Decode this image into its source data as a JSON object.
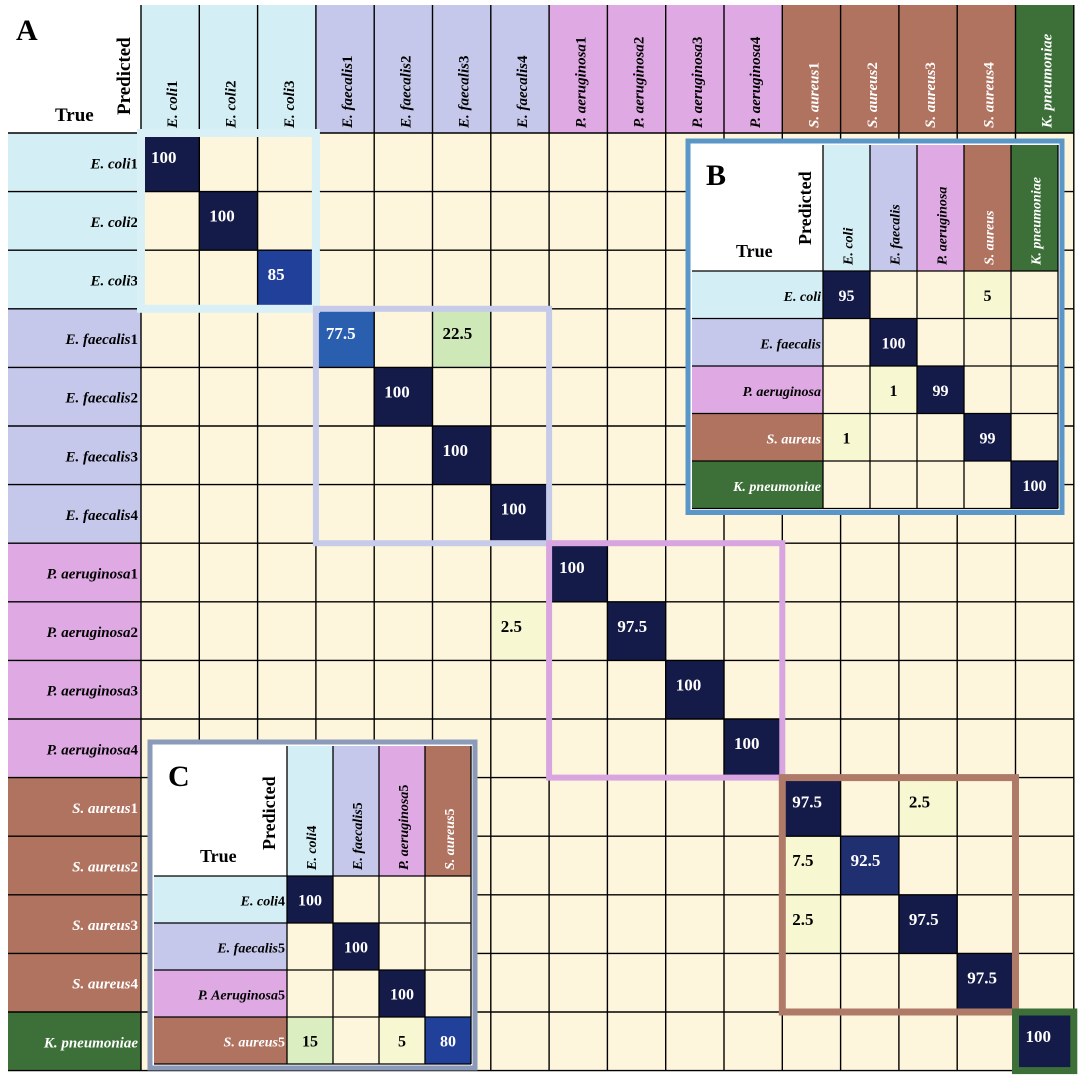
{
  "colors": {
    "cell_bg": "#fdf5dc",
    "ecoli": "#d3eef4",
    "efaecalis": "#c5c8ea",
    "paeruginosa": "#dfa9e3",
    "saureus": "#b07360",
    "kpneumoniae": "#3c7038",
    "grid": "#000000",
    "ecoli_frame": "#d8f0f6",
    "efaecalis_frame": "#c6cbea",
    "paeruginosa_frame": "#d8a5e0",
    "saureus_frame": "#b07a68",
    "kpneumoniae_frame": "#3c7038",
    "inset_b_frame": "#5a96c8",
    "inset_c_frame": "#8a9ab8"
  },
  "chart_data": [
    {
      "panel": "A",
      "type": "heatmap",
      "true_label": "True",
      "predicted_label": "Predicted",
      "rows": [
        "E. coli1",
        "E. coli2",
        "E. coli3",
        "E. faecalis1",
        "E. faecalis2",
        "E. faecalis3",
        "E. faecalis4",
        "P. aeruginosa1",
        "P. aeruginosa2",
        "P. aeruginosa3",
        "P. aeruginosa4",
        "S. aureus1",
        "S. aureus2",
        "S. aureus3",
        "S. aureus4",
        "K. pneumoniae"
      ],
      "columns": [
        "E. coli1",
        "E. coli2",
        "E. coli3",
        "E. faecalis1",
        "E. faecalis2",
        "E. faecalis3",
        "E. faecalis4",
        "P. aeruginosa1",
        "P. aeruginosa2",
        "P. aeruginosa3",
        "P. aeruginosa4",
        "S. aureus1",
        "S. aureus2",
        "S. aureus3",
        "S. aureus4",
        "K. pneumoniae"
      ],
      "values": [
        [
          100,
          null,
          null,
          null,
          null,
          null,
          null,
          null,
          null,
          null,
          null,
          null,
          null,
          null,
          null,
          null
        ],
        [
          null,
          100,
          null,
          null,
          null,
          null,
          null,
          null,
          null,
          null,
          null,
          null,
          null,
          null,
          null,
          null
        ],
        [
          null,
          null,
          85,
          null,
          null,
          null,
          null,
          null,
          null,
          null,
          null,
          null,
          null,
          null,
          null,
          null
        ],
        [
          null,
          null,
          null,
          77.5,
          null,
          22.5,
          null,
          null,
          null,
          null,
          null,
          null,
          null,
          null,
          null,
          null
        ],
        [
          null,
          null,
          null,
          null,
          100,
          null,
          null,
          null,
          null,
          null,
          null,
          null,
          null,
          null,
          null,
          null
        ],
        [
          null,
          null,
          null,
          null,
          null,
          100,
          null,
          null,
          null,
          null,
          null,
          null,
          null,
          null,
          null,
          null
        ],
        [
          null,
          null,
          null,
          null,
          null,
          null,
          100,
          null,
          null,
          null,
          null,
          null,
          null,
          null,
          null,
          null
        ],
        [
          null,
          null,
          null,
          null,
          null,
          null,
          null,
          100,
          null,
          null,
          null,
          null,
          null,
          null,
          null,
          null
        ],
        [
          null,
          null,
          null,
          null,
          null,
          null,
          2.5,
          null,
          97.5,
          null,
          null,
          null,
          null,
          null,
          null,
          null
        ],
        [
          null,
          null,
          null,
          null,
          null,
          null,
          null,
          null,
          null,
          100,
          null,
          null,
          null,
          null,
          null,
          null
        ],
        [
          null,
          null,
          null,
          null,
          null,
          null,
          null,
          null,
          null,
          null,
          100,
          null,
          null,
          null,
          null,
          null
        ],
        [
          null,
          null,
          null,
          null,
          null,
          null,
          null,
          null,
          null,
          null,
          null,
          97.5,
          null,
          2.5,
          null,
          null
        ],
        [
          null,
          null,
          null,
          null,
          null,
          null,
          null,
          null,
          null,
          null,
          null,
          7.5,
          92.5,
          null,
          null,
          null
        ],
        [
          null,
          null,
          null,
          null,
          null,
          null,
          null,
          null,
          null,
          null,
          null,
          2.5,
          null,
          97.5,
          null,
          null
        ],
        [
          null,
          null,
          null,
          null,
          null,
          null,
          null,
          null,
          null,
          null,
          null,
          null,
          null,
          null,
          97.5,
          null
        ],
        [
          null,
          null,
          null,
          null,
          null,
          null,
          null,
          null,
          null,
          null,
          null,
          null,
          null,
          null,
          null,
          100
        ]
      ]
    },
    {
      "panel": "B",
      "type": "heatmap",
      "true_label": "True",
      "predicted_label": "Predicted",
      "rows": [
        "E. coli",
        "E. faecalis",
        "P. aeruginosa",
        "S. aureus",
        "K. pneumoniae"
      ],
      "columns": [
        "E. coli",
        "E. faecalis",
        "P. aeruginosa",
        "S. aureus",
        "K. pneumoniae"
      ],
      "values": [
        [
          95,
          null,
          null,
          5,
          null
        ],
        [
          null,
          100,
          null,
          null,
          null
        ],
        [
          null,
          1,
          99,
          null,
          null
        ],
        [
          1,
          null,
          null,
          99,
          null
        ],
        [
          null,
          null,
          null,
          null,
          100
        ]
      ]
    },
    {
      "panel": "C",
      "type": "heatmap",
      "true_label": "True",
      "predicted_label": "Predicted",
      "rows": [
        "E. coli4",
        "E. faecalis5",
        "P. Aeruginosa5",
        "S. aureus5"
      ],
      "columns": [
        "E. coli4",
        "E. faecalis5",
        "P. aeruginosa5",
        "S. aureus5"
      ],
      "values": [
        [
          100,
          null,
          null,
          null
        ],
        [
          null,
          100,
          null,
          null
        ],
        [
          null,
          null,
          100,
          null
        ],
        [
          15,
          null,
          5,
          80
        ]
      ]
    }
  ]
}
